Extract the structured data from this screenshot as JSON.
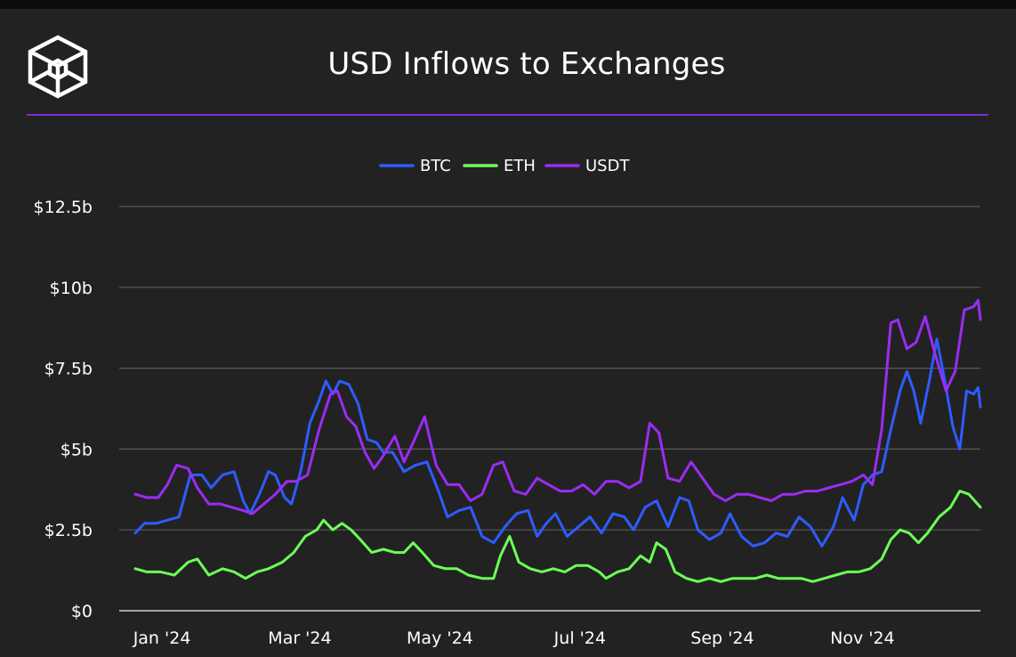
{
  "page": {
    "title": "USD Inflows to Exchanges"
  },
  "chart_data": {
    "type": "line",
    "title": "USD Inflows to Exchanges",
    "xlabel": "",
    "ylabel": "",
    "x_start": "2024-01-01",
    "x_end": "2024-12-13",
    "x_ticks": [
      {
        "label": "Jan '24",
        "date": "2024-01-01"
      },
      {
        "label": "Mar '24",
        "date": "2024-03-01"
      },
      {
        "label": "May '24",
        "date": "2024-05-01"
      },
      {
        "label": "Jul '24",
        "date": "2024-07-01"
      },
      {
        "label": "Sep '24",
        "date": "2024-09-01"
      },
      {
        "label": "Nov '24",
        "date": "2024-11-01"
      }
    ],
    "y_ticks": [
      {
        "label": "$0",
        "value": 0
      },
      {
        "label": "$2.5b",
        "value": 2.5
      },
      {
        "label": "$5b",
        "value": 5
      },
      {
        "label": "$7.5b",
        "value": 7.5
      },
      {
        "label": "$10b",
        "value": 10
      },
      {
        "label": "$12.5b",
        "value": 12.5
      }
    ],
    "ylim": [
      0,
      12.5
    ],
    "y_unit": "USD billions",
    "grid": "horizontal",
    "legend_position": "top-center",
    "series": [
      {
        "name": "BTC",
        "color": "#2e5cff",
        "points": [
          [
            "2024-01-01",
            2.4
          ],
          [
            "2024-01-05",
            2.7
          ],
          [
            "2024-01-10",
            2.7
          ],
          [
            "2024-01-15",
            2.8
          ],
          [
            "2024-01-20",
            2.9
          ],
          [
            "2024-01-25",
            4.2
          ],
          [
            "2024-01-30",
            4.2
          ],
          [
            "2024-02-03",
            3.8
          ],
          [
            "2024-02-08",
            4.2
          ],
          [
            "2024-02-13",
            4.3
          ],
          [
            "2024-02-17",
            3.4
          ],
          [
            "2024-02-20",
            3.0
          ],
          [
            "2024-02-24",
            3.6
          ],
          [
            "2024-02-28",
            4.3
          ],
          [
            "2024-03-02",
            4.2
          ],
          [
            "2024-03-06",
            3.5
          ],
          [
            "2024-03-09",
            3.3
          ],
          [
            "2024-03-13",
            4.3
          ],
          [
            "2024-03-17",
            5.8
          ],
          [
            "2024-03-21",
            6.5
          ],
          [
            "2024-03-24",
            7.1
          ],
          [
            "2024-03-27",
            6.7
          ],
          [
            "2024-03-30",
            7.1
          ],
          [
            "2024-04-03",
            7.0
          ],
          [
            "2024-04-07",
            6.4
          ],
          [
            "2024-04-11",
            5.3
          ],
          [
            "2024-04-15",
            5.2
          ],
          [
            "2024-04-18",
            4.9
          ],
          [
            "2024-04-22",
            4.9
          ],
          [
            "2024-04-27",
            4.3
          ],
          [
            "2024-05-02",
            4.5
          ],
          [
            "2024-05-07",
            4.6
          ],
          [
            "2024-05-12",
            3.7
          ],
          [
            "2024-05-16",
            2.9
          ],
          [
            "2024-05-21",
            3.1
          ],
          [
            "2024-05-26",
            3.2
          ],
          [
            "2024-05-31",
            2.3
          ],
          [
            "2024-06-05",
            2.1
          ],
          [
            "2024-06-10",
            2.6
          ],
          [
            "2024-06-15",
            3.0
          ],
          [
            "2024-06-20",
            3.1
          ],
          [
            "2024-06-24",
            2.3
          ],
          [
            "2024-06-28",
            2.7
          ],
          [
            "2024-07-02",
            3.0
          ],
          [
            "2024-07-07",
            2.3
          ],
          [
            "2024-07-12",
            2.6
          ],
          [
            "2024-07-17",
            2.9
          ],
          [
            "2024-07-22",
            2.4
          ],
          [
            "2024-07-27",
            3.0
          ],
          [
            "2024-08-01",
            2.9
          ],
          [
            "2024-08-05",
            2.5
          ],
          [
            "2024-08-10",
            3.2
          ],
          [
            "2024-08-15",
            3.4
          ],
          [
            "2024-08-20",
            2.6
          ],
          [
            "2024-08-25",
            3.5
          ],
          [
            "2024-08-29",
            3.4
          ],
          [
            "2024-09-02",
            2.5
          ],
          [
            "2024-09-07",
            2.2
          ],
          [
            "2024-09-12",
            2.4
          ],
          [
            "2024-09-16",
            3.0
          ],
          [
            "2024-09-21",
            2.3
          ],
          [
            "2024-09-26",
            2.0
          ],
          [
            "2024-10-01",
            2.1
          ],
          [
            "2024-10-06",
            2.4
          ],
          [
            "2024-10-11",
            2.3
          ],
          [
            "2024-10-16",
            2.9
          ],
          [
            "2024-10-21",
            2.6
          ],
          [
            "2024-10-26",
            2.0
          ],
          [
            "2024-10-31",
            2.6
          ],
          [
            "2024-11-04",
            3.5
          ],
          [
            "2024-11-09",
            2.8
          ],
          [
            "2024-11-13",
            3.9
          ],
          [
            "2024-11-17",
            4.2
          ],
          [
            "2024-11-21",
            4.3
          ],
          [
            "2024-11-25",
            5.6
          ],
          [
            "2024-11-29",
            6.8
          ],
          [
            "2024-12-02",
            7.4
          ],
          [
            "2024-12-05",
            6.8
          ],
          [
            "2024-12-08",
            5.8
          ],
          [
            "2024-12-12",
            7.2
          ],
          [
            "2024-12-15",
            8.4
          ],
          [
            "2024-12-18",
            7.3
          ],
          [
            "2024-12-22",
            5.7
          ],
          [
            "2024-12-25",
            5.0
          ],
          [
            "2024-12-28",
            6.8
          ],
          [
            "2024-12-31",
            6.7
          ],
          [
            "2025-01-02",
            6.9
          ],
          [
            "2025-01-03",
            6.3
          ]
        ]
      },
      {
        "name": "ETH",
        "color": "#6cff57",
        "points": [
          [
            "2024-01-01",
            1.3
          ],
          [
            "2024-01-06",
            1.2
          ],
          [
            "2024-01-12",
            1.2
          ],
          [
            "2024-01-18",
            1.1
          ],
          [
            "2024-01-24",
            1.5
          ],
          [
            "2024-01-28",
            1.6
          ],
          [
            "2024-02-02",
            1.1
          ],
          [
            "2024-02-08",
            1.3
          ],
          [
            "2024-02-13",
            1.2
          ],
          [
            "2024-02-18",
            1.0
          ],
          [
            "2024-02-23",
            1.2
          ],
          [
            "2024-02-28",
            1.3
          ],
          [
            "2024-03-05",
            1.5
          ],
          [
            "2024-03-10",
            1.8
          ],
          [
            "2024-03-15",
            2.3
          ],
          [
            "2024-03-20",
            2.5
          ],
          [
            "2024-03-23",
            2.8
          ],
          [
            "2024-03-27",
            2.5
          ],
          [
            "2024-03-31",
            2.7
          ],
          [
            "2024-04-04",
            2.5
          ],
          [
            "2024-04-08",
            2.2
          ],
          [
            "2024-04-13",
            1.8
          ],
          [
            "2024-04-18",
            1.9
          ],
          [
            "2024-04-23",
            1.8
          ],
          [
            "2024-04-27",
            1.8
          ],
          [
            "2024-05-01",
            2.1
          ],
          [
            "2024-05-05",
            1.8
          ],
          [
            "2024-05-10",
            1.4
          ],
          [
            "2024-05-15",
            1.3
          ],
          [
            "2024-05-20",
            1.3
          ],
          [
            "2024-05-25",
            1.1
          ],
          [
            "2024-05-31",
            1.0
          ],
          [
            "2024-06-05",
            1.0
          ],
          [
            "2024-06-08",
            1.7
          ],
          [
            "2024-06-12",
            2.3
          ],
          [
            "2024-06-16",
            1.5
          ],
          [
            "2024-06-21",
            1.3
          ],
          [
            "2024-06-26",
            1.2
          ],
          [
            "2024-07-01",
            1.3
          ],
          [
            "2024-07-06",
            1.2
          ],
          [
            "2024-07-11",
            1.4
          ],
          [
            "2024-07-16",
            1.4
          ],
          [
            "2024-07-21",
            1.2
          ],
          [
            "2024-07-24",
            1.0
          ],
          [
            "2024-07-29",
            1.2
          ],
          [
            "2024-08-03",
            1.3
          ],
          [
            "2024-08-08",
            1.7
          ],
          [
            "2024-08-12",
            1.5
          ],
          [
            "2024-08-15",
            2.1
          ],
          [
            "2024-08-19",
            1.9
          ],
          [
            "2024-08-23",
            1.2
          ],
          [
            "2024-08-28",
            1.0
          ],
          [
            "2024-09-02",
            0.9
          ],
          [
            "2024-09-07",
            1.0
          ],
          [
            "2024-09-12",
            0.9
          ],
          [
            "2024-09-17",
            1.0
          ],
          [
            "2024-09-22",
            1.0
          ],
          [
            "2024-09-27",
            1.0
          ],
          [
            "2024-10-02",
            1.1
          ],
          [
            "2024-10-07",
            1.0
          ],
          [
            "2024-10-12",
            1.0
          ],
          [
            "2024-10-17",
            1.0
          ],
          [
            "2024-10-22",
            0.9
          ],
          [
            "2024-10-27",
            1.0
          ],
          [
            "2024-11-01",
            1.1
          ],
          [
            "2024-11-06",
            1.2
          ],
          [
            "2024-11-11",
            1.2
          ],
          [
            "2024-11-16",
            1.3
          ],
          [
            "2024-11-21",
            1.6
          ],
          [
            "2024-11-25",
            2.2
          ],
          [
            "2024-11-29",
            2.5
          ],
          [
            "2024-12-03",
            2.4
          ],
          [
            "2024-12-07",
            2.1
          ],
          [
            "2024-12-11",
            2.4
          ],
          [
            "2024-12-16",
            2.9
          ],
          [
            "2024-12-21",
            3.2
          ],
          [
            "2024-12-25",
            3.7
          ],
          [
            "2024-12-29",
            3.6
          ],
          [
            "2025-01-03",
            3.2
          ]
        ]
      },
      {
        "name": "USDT",
        "color": "#9b2cf2",
        "points": [
          [
            "2024-01-01",
            3.6
          ],
          [
            "2024-01-06",
            3.5
          ],
          [
            "2024-01-11",
            3.5
          ],
          [
            "2024-01-15",
            3.9
          ],
          [
            "2024-01-19",
            4.5
          ],
          [
            "2024-01-24",
            4.4
          ],
          [
            "2024-01-28",
            3.8
          ],
          [
            "2024-02-02",
            3.3
          ],
          [
            "2024-02-07",
            3.3
          ],
          [
            "2024-02-12",
            3.2
          ],
          [
            "2024-02-17",
            3.1
          ],
          [
            "2024-02-21",
            3.0
          ],
          [
            "2024-02-26",
            3.3
          ],
          [
            "2024-03-02",
            3.6
          ],
          [
            "2024-03-07",
            4.0
          ],
          [
            "2024-03-11",
            4.0
          ],
          [
            "2024-03-16",
            4.2
          ],
          [
            "2024-03-21",
            5.6
          ],
          [
            "2024-03-26",
            6.7
          ],
          [
            "2024-03-29",
            6.8
          ],
          [
            "2024-04-02",
            6.0
          ],
          [
            "2024-04-06",
            5.7
          ],
          [
            "2024-04-10",
            4.9
          ],
          [
            "2024-04-14",
            4.4
          ],
          [
            "2024-04-18",
            4.8
          ],
          [
            "2024-04-23",
            5.4
          ],
          [
            "2024-04-27",
            4.6
          ],
          [
            "2024-05-01",
            5.2
          ],
          [
            "2024-05-06",
            6.0
          ],
          [
            "2024-05-11",
            4.5
          ],
          [
            "2024-05-16",
            3.9
          ],
          [
            "2024-05-21",
            3.9
          ],
          [
            "2024-05-26",
            3.4
          ],
          [
            "2024-05-31",
            3.6
          ],
          [
            "2024-06-05",
            4.5
          ],
          [
            "2024-06-09",
            4.6
          ],
          [
            "2024-06-14",
            3.7
          ],
          [
            "2024-06-19",
            3.6
          ],
          [
            "2024-06-24",
            4.1
          ],
          [
            "2024-06-29",
            3.9
          ],
          [
            "2024-07-04",
            3.7
          ],
          [
            "2024-07-09",
            3.7
          ],
          [
            "2024-07-14",
            3.9
          ],
          [
            "2024-07-19",
            3.6
          ],
          [
            "2024-07-24",
            4.0
          ],
          [
            "2024-07-29",
            4.0
          ],
          [
            "2024-08-03",
            3.8
          ],
          [
            "2024-08-08",
            4.0
          ],
          [
            "2024-08-12",
            5.8
          ],
          [
            "2024-08-16",
            5.5
          ],
          [
            "2024-08-20",
            4.1
          ],
          [
            "2024-08-25",
            4.0
          ],
          [
            "2024-08-30",
            4.6
          ],
          [
            "2024-09-04",
            4.1
          ],
          [
            "2024-09-09",
            3.6
          ],
          [
            "2024-09-14",
            3.4
          ],
          [
            "2024-09-19",
            3.6
          ],
          [
            "2024-09-24",
            3.6
          ],
          [
            "2024-09-29",
            3.5
          ],
          [
            "2024-10-04",
            3.4
          ],
          [
            "2024-10-09",
            3.6
          ],
          [
            "2024-10-14",
            3.6
          ],
          [
            "2024-10-19",
            3.7
          ],
          [
            "2024-10-24",
            3.7
          ],
          [
            "2024-10-29",
            3.8
          ],
          [
            "2024-11-03",
            3.9
          ],
          [
            "2024-11-08",
            4.0
          ],
          [
            "2024-11-13",
            4.2
          ],
          [
            "2024-11-17",
            3.9
          ],
          [
            "2024-11-21",
            5.6
          ],
          [
            "2024-11-25",
            8.9
          ],
          [
            "2024-11-28",
            9.0
          ],
          [
            "2024-12-02",
            8.1
          ],
          [
            "2024-12-06",
            8.3
          ],
          [
            "2024-12-10",
            9.1
          ],
          [
            "2024-12-14",
            8.0
          ],
          [
            "2024-12-19",
            6.8
          ],
          [
            "2024-12-23",
            7.4
          ],
          [
            "2024-12-27",
            9.3
          ],
          [
            "2024-12-31",
            9.4
          ],
          [
            "2025-01-02",
            9.6
          ],
          [
            "2025-01-03",
            9.0
          ]
        ]
      }
    ]
  }
}
